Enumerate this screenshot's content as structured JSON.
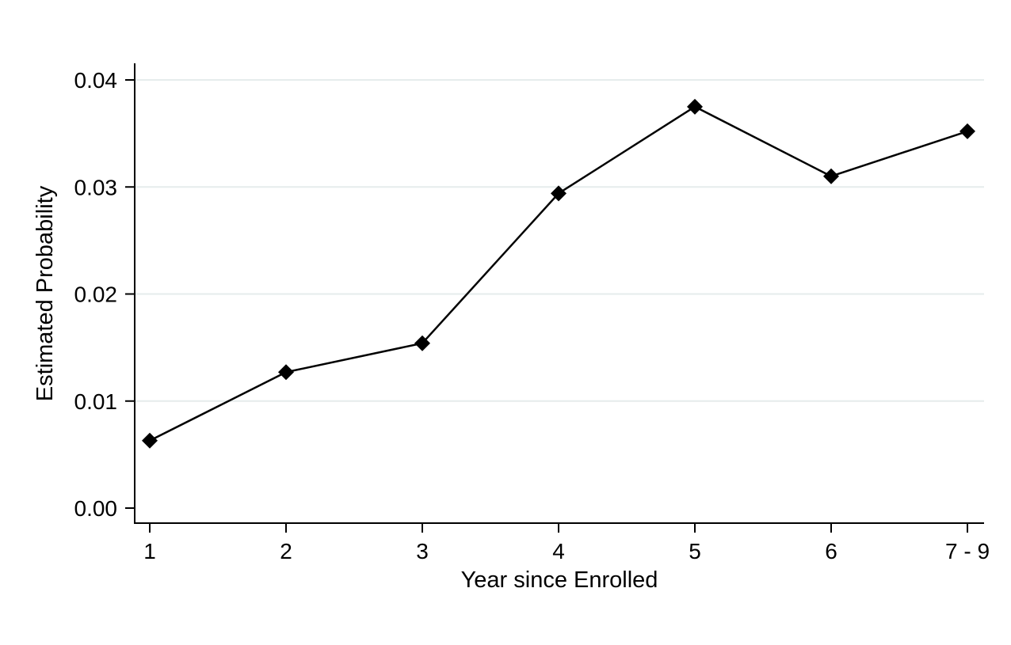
{
  "chart_data": {
    "type": "line",
    "title": "",
    "xlabel": "Year since Enrolled",
    "ylabel": "Estimated Probability",
    "categories": [
      "1",
      "2",
      "3",
      "4",
      "5",
      "6",
      "7 - 9"
    ],
    "series": [
      {
        "values": [
          0.0063,
          0.0127,
          0.0154,
          0.0294,
          0.0375,
          0.031,
          0.0352
        ],
        "marker": "diamond",
        "color": "#000000"
      }
    ],
    "ylim": [
      0,
      0.04
    ],
    "yticks": [
      0,
      0.01,
      0.02,
      0.03,
      0.04
    ],
    "ytick_labels": [
      "0.00",
      "0.01",
      "0.02",
      "0.03",
      "0.04"
    ],
    "grid": "horizontal",
    "grid_color": "#e6ecec",
    "legend": "none"
  }
}
